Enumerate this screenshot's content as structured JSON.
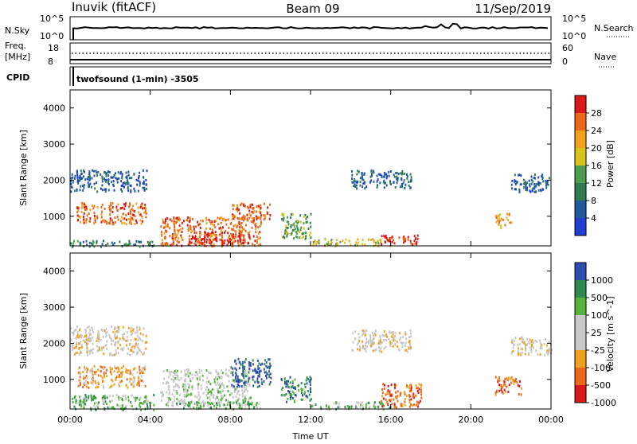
{
  "header": {
    "site": "Inuvik (fitACF)",
    "beam": "Beam 09",
    "date": "11/Sep/2019"
  },
  "top_panels": {
    "nsky_label": "N.Sky",
    "nsky_ticks": [
      "10^5",
      "10^0"
    ],
    "nsky_right_ticks": [
      "10^5",
      "10^0"
    ],
    "nsearch_label": "N.Search",
    "freq_label_1": "Freq.",
    "freq_label_2": "[MHz]",
    "freq_ticks": [
      "18",
      "8"
    ],
    "nave_ticks": [
      "60",
      "0"
    ],
    "nave_label": "Nave",
    "cpid_label": "CPID",
    "cpid_text": "twofsound (1-min) -3505"
  },
  "colors": {
    "power": [
      "#1f3fd0",
      "#1e5a9c",
      "#2f7d4e",
      "#4f9d4f",
      "#d8c21c",
      "#f1a11a",
      "#e9681a",
      "#d91a1a"
    ],
    "velocity": [
      "#d91a1a",
      "#e9681a",
      "#f0a020",
      "#c8c8c8",
      "#c8c8c8",
      "#55b33c",
      "#2e8a4e",
      "#2d4eb0"
    ]
  },
  "chart_data": [
    {
      "type": "heatmap",
      "panel": "power",
      "ylabel": "Slant Range [km]",
      "yticks": [
        "4000",
        "3000",
        "2000",
        "1000"
      ],
      "ylim": [
        180,
        4500
      ],
      "xlim": [
        0,
        24
      ],
      "colorbar_label": "Power [dB]",
      "colorbar_ticks": [
        "28",
        "24",
        "20",
        "16",
        "12",
        "8",
        "4"
      ],
      "bands": [
        {
          "t0": 0.0,
          "t1": 3.8,
          "r0": 1700,
          "r1": 2300,
          "level": 1
        },
        {
          "t0": 0.3,
          "t1": 3.8,
          "r0": 800,
          "r1": 1400,
          "level": 6
        },
        {
          "t0": 0.0,
          "t1": 4.2,
          "r0": 180,
          "r1": 350,
          "level": 2
        },
        {
          "t0": 4.5,
          "t1": 9.5,
          "r0": 200,
          "r1": 1000,
          "level": 6
        },
        {
          "t0": 6.0,
          "t1": 9.0,
          "r0": 250,
          "r1": 600,
          "level": 7
        },
        {
          "t0": 8.0,
          "t1": 10.0,
          "r0": 900,
          "r1": 1400,
          "level": 6
        },
        {
          "t0": 10.5,
          "t1": 12.0,
          "r0": 400,
          "r1": 1100,
          "level": 3
        },
        {
          "t0": 12.0,
          "t1": 16.0,
          "r0": 200,
          "r1": 400,
          "level": 4
        },
        {
          "t0": 14.0,
          "t1": 17.0,
          "r0": 1800,
          "r1": 2300,
          "level": 1
        },
        {
          "t0": 15.5,
          "t1": 17.5,
          "r0": 250,
          "r1": 500,
          "level": 7
        },
        {
          "t0": 21.2,
          "t1": 22.0,
          "r0": 700,
          "r1": 1100,
          "level": 5
        },
        {
          "t0": 22.0,
          "t1": 24.0,
          "r0": 1700,
          "r1": 2200,
          "level": 1
        }
      ]
    },
    {
      "type": "heatmap",
      "panel": "velocity",
      "ylabel": "Slant Range [km]",
      "yticks": [
        "4000",
        "3000",
        "2000",
        "1000"
      ],
      "ylim": [
        180,
        4500
      ],
      "xlim": [
        0,
        24
      ],
      "xlabel": "Time UT",
      "xticks": [
        "00:00",
        "04:00",
        "08:00",
        "12:00",
        "16:00",
        "20:00",
        "00:00"
      ],
      "colorbar_label": "Velocity [m s^-1]",
      "colorbar_ticks": [
        "1000",
        "500",
        "100",
        "25",
        "-25",
        "-100",
        "-500",
        "-1000"
      ],
      "bands": [
        {
          "t0": 0.0,
          "t1": 3.8,
          "r0": 1700,
          "r1": 2500,
          "level": 3
        },
        {
          "t0": 0.3,
          "t1": 3.8,
          "r0": 800,
          "r1": 1400,
          "level": 2
        },
        {
          "t0": 0.0,
          "t1": 4.2,
          "r0": 180,
          "r1": 600,
          "level": 5
        },
        {
          "t0": 4.5,
          "t1": 9.0,
          "r0": 300,
          "r1": 1300,
          "level": 4
        },
        {
          "t0": 5.0,
          "t1": 9.5,
          "r0": 200,
          "r1": 400,
          "level": 5
        },
        {
          "t0": 8.0,
          "t1": 10.0,
          "r0": 800,
          "r1": 1600,
          "level": 7
        },
        {
          "t0": 10.5,
          "t1": 12.0,
          "r0": 400,
          "r1": 1100,
          "level": 6
        },
        {
          "t0": 12.0,
          "t1": 16.0,
          "r0": 200,
          "r1": 400,
          "level": 5
        },
        {
          "t0": 14.0,
          "t1": 17.0,
          "r0": 1800,
          "r1": 2400,
          "level": 3
        },
        {
          "t0": 15.5,
          "t1": 17.5,
          "r0": 250,
          "r1": 900,
          "level": 1
        },
        {
          "t0": 21.2,
          "t1": 22.5,
          "r0": 600,
          "r1": 1100,
          "level": 1
        },
        {
          "t0": 22.0,
          "t1": 24.0,
          "r0": 1700,
          "r1": 2200,
          "level": 3
        }
      ]
    }
  ]
}
